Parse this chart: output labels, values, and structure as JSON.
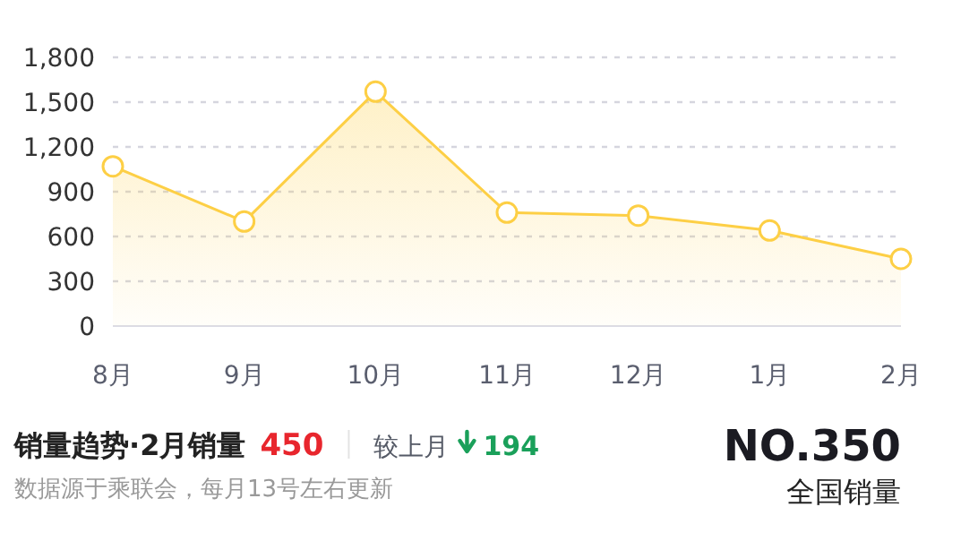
{
  "chart_data": {
    "type": "area",
    "title": "销量趋势·2月销量",
    "categories": [
      "8月",
      "9月",
      "10月",
      "11月",
      "12月",
      "1月",
      "2月"
    ],
    "series": [
      {
        "color": "#fdcf45",
        "values": [
          1070,
          700,
          1570,
          760,
          740,
          640,
          450
        ]
      }
    ],
    "ylim": [
      0,
      1800
    ],
    "yticks": [
      0,
      300,
      600,
      900,
      {
        "value": 1200,
        "label": "1,200"
      },
      {
        "value": 1500,
        "label": "1,500"
      },
      {
        "value": 1800,
        "label": "1,800"
      }
    ],
    "grid": "y",
    "marker": "circle",
    "annotations": [
      "450",
      "较上月",
      "194",
      "NO.350",
      "全国销量",
      "数据源于乘联会，每月13号左右更新"
    ]
  }
}
